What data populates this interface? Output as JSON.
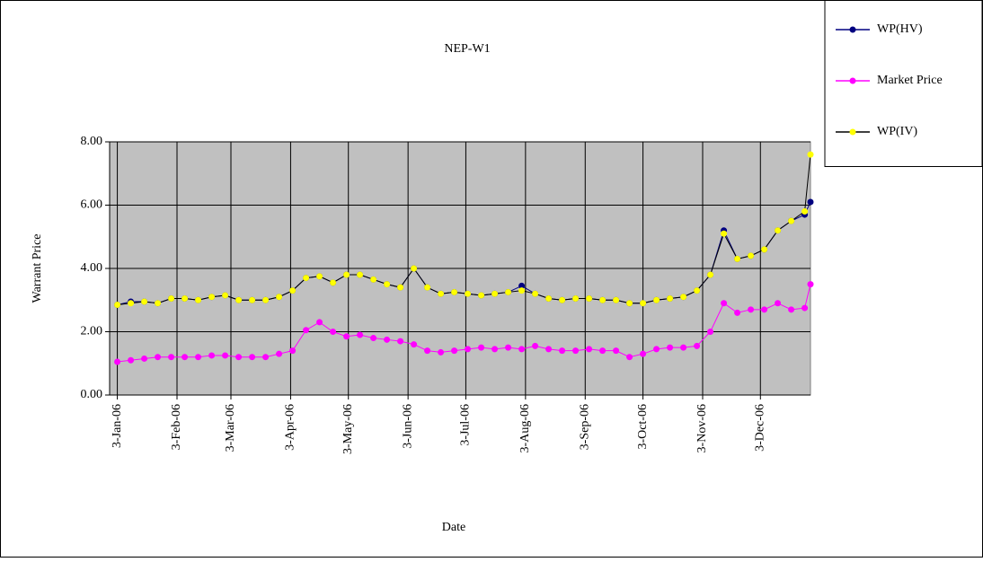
{
  "chart_data": {
    "type": "line",
    "title": "NEP-W1",
    "x_label": "Date",
    "y_label": "Warrant Price",
    "x": [
      "2006-01-03",
      "2006-01-10",
      "2006-01-17",
      "2006-01-24",
      "2006-01-31",
      "2006-02-07",
      "2006-02-14",
      "2006-02-21",
      "2006-02-28",
      "2006-03-07",
      "2006-03-14",
      "2006-03-21",
      "2006-03-28",
      "2006-04-04",
      "2006-04-11",
      "2006-04-18",
      "2006-04-25",
      "2006-05-02",
      "2006-05-09",
      "2006-05-16",
      "2006-05-23",
      "2006-05-30",
      "2006-06-06",
      "2006-06-13",
      "2006-06-20",
      "2006-06-27",
      "2006-07-04",
      "2006-07-11",
      "2006-07-18",
      "2006-07-25",
      "2006-08-01",
      "2006-08-08",
      "2006-08-15",
      "2006-08-22",
      "2006-08-29",
      "2006-09-05",
      "2006-09-12",
      "2006-09-19",
      "2006-09-26",
      "2006-10-03",
      "2006-10-10",
      "2006-10-17",
      "2006-10-24",
      "2006-10-31",
      "2006-11-07",
      "2006-11-14",
      "2006-11-21",
      "2006-11-28",
      "2006-12-05",
      "2006-12-12",
      "2006-12-19",
      "2006-12-26",
      "2006-12-29"
    ],
    "series": [
      {
        "name": "WP(HV)",
        "color": "#000080",
        "values": [
          2.85,
          2.95,
          2.95,
          2.9,
          3.05,
          3.05,
          3.0,
          3.1,
          3.15,
          3.0,
          3.0,
          3.0,
          3.1,
          3.3,
          3.7,
          3.75,
          3.55,
          3.8,
          3.8,
          3.65,
          3.5,
          3.4,
          4.0,
          3.4,
          3.2,
          3.25,
          3.2,
          3.15,
          3.2,
          3.25,
          3.45,
          3.2,
          3.05,
          3.0,
          3.05,
          3.05,
          3.0,
          3.0,
          2.9,
          2.9,
          3.0,
          3.05,
          3.1,
          3.3,
          3.8,
          5.2,
          4.3,
          4.4,
          4.6,
          5.2,
          5.5,
          5.7,
          6.1
        ]
      },
      {
        "name": "Market Price",
        "color": "#ff00ff",
        "values": [
          1.05,
          1.1,
          1.15,
          1.2,
          1.2,
          1.2,
          1.2,
          1.25,
          1.25,
          1.2,
          1.2,
          1.2,
          1.3,
          1.4,
          2.05,
          2.3,
          2.0,
          1.85,
          1.9,
          1.8,
          1.75,
          1.7,
          1.6,
          1.4,
          1.35,
          1.4,
          1.45,
          1.5,
          1.45,
          1.5,
          1.45,
          1.55,
          1.45,
          1.4,
          1.4,
          1.45,
          1.4,
          1.4,
          1.2,
          1.3,
          1.45,
          1.5,
          1.5,
          1.55,
          2.0,
          2.9,
          2.6,
          2.7,
          2.7,
          2.9,
          2.7,
          2.75,
          3.5
        ]
      },
      {
        "name": "WP(IV)",
        "color": "#ffff00",
        "values": [
          2.85,
          2.9,
          2.95,
          2.9,
          3.05,
          3.05,
          3.0,
          3.1,
          3.15,
          3.0,
          3.0,
          3.0,
          3.1,
          3.3,
          3.7,
          3.75,
          3.55,
          3.8,
          3.8,
          3.65,
          3.5,
          3.4,
          4.0,
          3.4,
          3.2,
          3.25,
          3.2,
          3.15,
          3.2,
          3.25,
          3.3,
          3.2,
          3.05,
          3.0,
          3.05,
          3.05,
          3.0,
          3.0,
          2.9,
          2.9,
          3.0,
          3.05,
          3.1,
          3.3,
          3.8,
          5.1,
          4.3,
          4.4,
          4.6,
          5.2,
          5.5,
          5.8,
          7.6
        ]
      }
    ],
    "xlim": [
      "2005-12-30",
      "2006-12-29"
    ],
    "xticks": [
      {
        "value": "2006-01-03",
        "label": "3-Jan-06"
      },
      {
        "value": "2006-02-03",
        "label": "3-Feb-06"
      },
      {
        "value": "2006-03-03",
        "label": "3-Mar-06"
      },
      {
        "value": "2006-04-03",
        "label": "3-Apr-06"
      },
      {
        "value": "2006-05-03",
        "label": "3-May-06"
      },
      {
        "value": "2006-06-03",
        "label": "3-Jun-06"
      },
      {
        "value": "2006-07-03",
        "label": "3-Jul-06"
      },
      {
        "value": "2006-08-03",
        "label": "3-Aug-06"
      },
      {
        "value": "2006-09-03",
        "label": "3-Sep-06"
      },
      {
        "value": "2006-10-03",
        "label": "3-Oct-06"
      },
      {
        "value": "2006-11-03",
        "label": "3-Nov-06"
      },
      {
        "value": "2006-12-03",
        "label": "3-Dec-06"
      }
    ],
    "ylim": [
      0,
      8
    ],
    "yticks": [
      {
        "value": 0,
        "label": "0.00"
      },
      {
        "value": 2,
        "label": "2.00"
      },
      {
        "value": 4,
        "label": "4.00"
      },
      {
        "value": 6,
        "label": "6.00"
      },
      {
        "value": 8,
        "label": "8.00"
      }
    ],
    "grid": true,
    "legend": "top-right"
  }
}
